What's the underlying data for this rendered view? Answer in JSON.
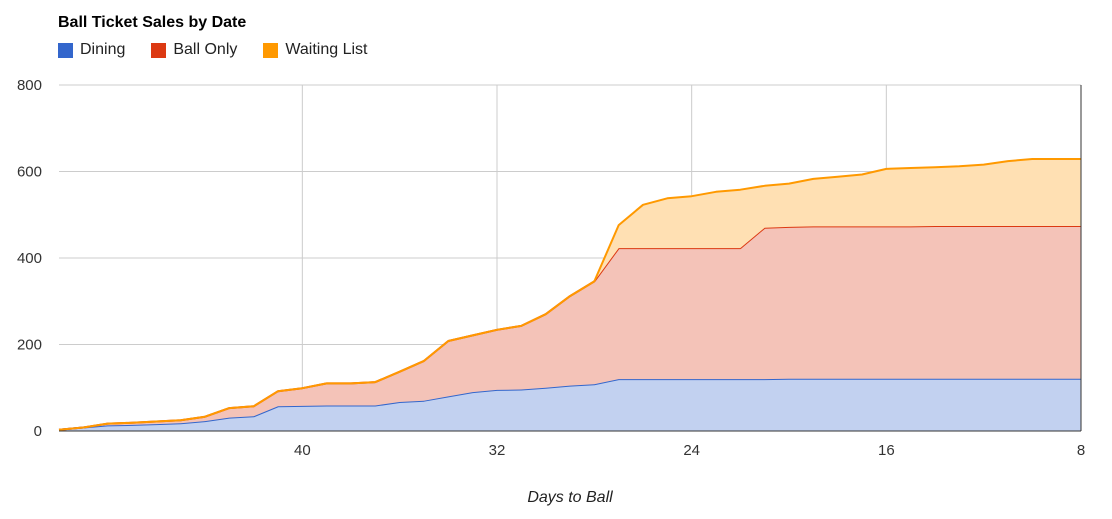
{
  "chart_data": {
    "type": "area",
    "stacked": true,
    "title": "Ball Ticket Sales by Date",
    "xlabel": "Days to Ball",
    "ylabel": "",
    "xlim": [
      50,
      8
    ],
    "x_reversed": true,
    "ylim": [
      0,
      800
    ],
    "x_ticks": [
      "40",
      "32",
      "24",
      "16",
      "8"
    ],
    "y_ticks": [
      "0",
      "200",
      "400",
      "600",
      "800"
    ],
    "grid": true,
    "legend_position": "top-left",
    "x": [
      50,
      49,
      48,
      47,
      46,
      45,
      44,
      43,
      42,
      41,
      40,
      39,
      38,
      37,
      36,
      35,
      34,
      33,
      32,
      31,
      30,
      29,
      28,
      27,
      26,
      25,
      24,
      23,
      22,
      21,
      20,
      19,
      18,
      17,
      16,
      15,
      14,
      13,
      12,
      11,
      10,
      9,
      8
    ],
    "series": [
      {
        "name": "Dining",
        "color": "#3366cc",
        "values": [
          3,
          8,
          13,
          14,
          16,
          18,
          23,
          31,
          34,
          57,
          58,
          59,
          59,
          59,
          67,
          70,
          80,
          90,
          95,
          96,
          100,
          105,
          108,
          120,
          120,
          120,
          120,
          120,
          120,
          120,
          121,
          121,
          121,
          121,
          121,
          121,
          121,
          121,
          121,
          121,
          121,
          121,
          121
        ]
      },
      {
        "name": "Ball Only",
        "color": "#dc3912",
        "values": [
          0,
          0,
          4,
          5,
          6,
          7,
          10,
          22,
          23,
          35,
          41,
          51,
          51,
          54,
          70,
          92,
          128,
          131,
          139,
          147,
          170,
          207,
          238,
          303,
          303,
          303,
          303,
          303,
          303,
          350,
          351,
          352,
          352,
          352,
          352,
          352,
          353,
          353,
          353,
          353,
          353,
          353,
          353
        ]
      },
      {
        "name": "Waiting List",
        "color": "#ff9900",
        "values": [
          0,
          0,
          0,
          0,
          0,
          0,
          0,
          0,
          0,
          0,
          0,
          0,
          0,
          0,
          0,
          0,
          0,
          0,
          0,
          0,
          0,
          0,
          0,
          53,
          100,
          115,
          120,
          130,
          135,
          97,
          100,
          110,
          115,
          120,
          133,
          135,
          136,
          138,
          142,
          150,
          155,
          155,
          155
        ]
      }
    ]
  }
}
